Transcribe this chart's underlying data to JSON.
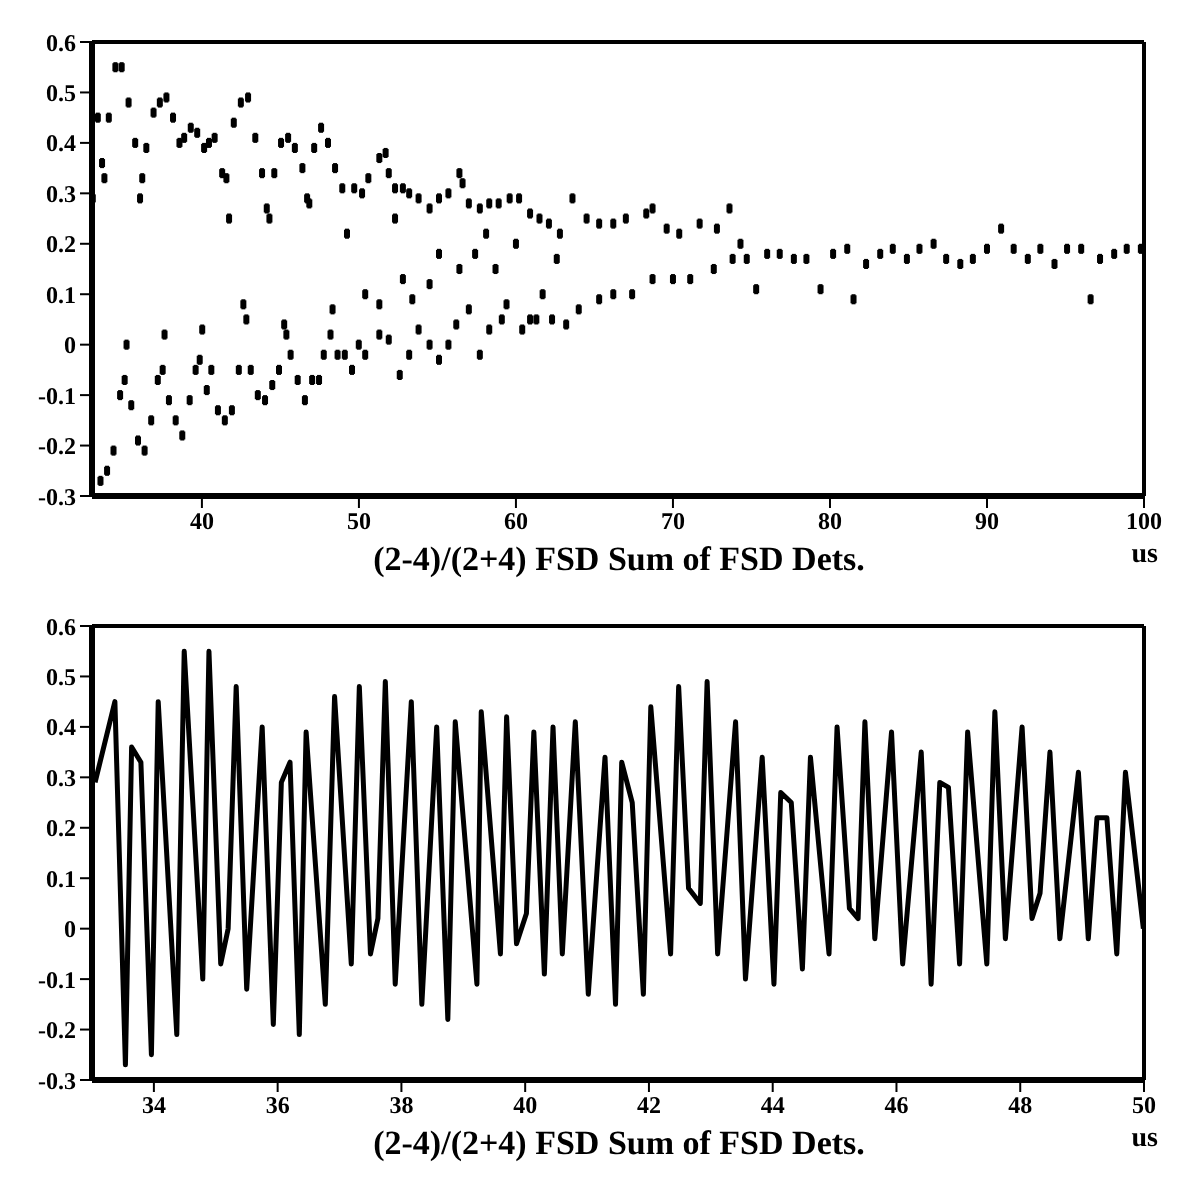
{
  "chart_data": [
    {
      "type": "scatter",
      "xlabel": "(2-4)/(2+4) FSD Sum of FSD Dets.",
      "annotations": [
        "us"
      ],
      "marker": "square",
      "xlim": [
        33,
        100
      ],
      "xticks": [
        40,
        50,
        60,
        70,
        80,
        90,
        100
      ],
      "ylim": [
        -0.3,
        0.6
      ],
      "yticks": [
        -0.3,
        -0.2,
        -0.1,
        0,
        0.1,
        0.2,
        0.3,
        0.4,
        0.5,
        0.6
      ],
      "series": [
        {
          "color": "#000000",
          "x": [
            33.05,
            33.37,
            33.54,
            33.64,
            33.79,
            33.96,
            34.07,
            34.37,
            34.49,
            34.79,
            34.89,
            35.08,
            35.2,
            35.33,
            35.5,
            35.75,
            35.93,
            36.06,
            36.2,
            36.35,
            36.46,
            36.77,
            36.92,
            37.19,
            37.32,
            37.5,
            37.62,
            37.74,
            37.9,
            38.16,
            38.33,
            38.57,
            38.75,
            38.87,
            39.22,
            39.29,
            39.6,
            39.7,
            39.86,
            40.02,
            40.14,
            40.31,
            40.45,
            40.6,
            40.81,
            41.02,
            41.29,
            41.46,
            41.56,
            41.73,
            41.91,
            42.03,
            42.35,
            42.48,
            42.64,
            42.83,
            42.94,
            43.11,
            43.4,
            43.56,
            43.83,
            44.02,
            44.13,
            44.3,
            44.48,
            44.61,
            44.91,
            45.04,
            45.24,
            45.38,
            45.49,
            45.65,
            45.92,
            46.1,
            46.4,
            46.56,
            46.7,
            46.84,
            47.02,
            47.15,
            47.46,
            47.59,
            47.76,
            48.03,
            48.19,
            48.32,
            48.48,
            48.64,
            48.94,
            49.1,
            49.24,
            49.56,
            49.7,
            49.99
          ],
          "values": [
            0.29,
            0.45,
            -0.27,
            0.36,
            0.33,
            -0.25,
            0.45,
            -0.21,
            0.55,
            -0.1,
            0.55,
            -0.07,
            0.0,
            0.48,
            -0.12,
            0.4,
            -0.19,
            0.29,
            0.33,
            -0.21,
            0.39,
            -0.15,
            0.46,
            -0.07,
            0.48,
            -0.05,
            0.02,
            0.49,
            -0.11,
            0.45,
            -0.15,
            0.4,
            -0.18,
            0.41,
            -0.11,
            0.43,
            -0.05,
            0.42,
            -0.03,
            0.03,
            0.39,
            -0.09,
            0.4,
            -0.05,
            0.41,
            -0.13,
            0.34,
            -0.15,
            0.33,
            0.25,
            -0.13,
            0.44,
            -0.05,
            0.48,
            0.08,
            0.05,
            0.49,
            -0.05,
            0.41,
            -0.1,
            0.34,
            -0.11,
            0.27,
            0.25,
            -0.08,
            0.34,
            -0.05,
            0.4,
            0.04,
            0.02,
            0.41,
            -0.02,
            0.39,
            -0.07,
            0.35,
            -0.11,
            0.29,
            0.28,
            -0.07,
            0.39,
            -0.07,
            0.43,
            -0.02,
            0.4,
            0.02,
            0.07,
            0.35,
            -0.02,
            0.31,
            -0.02,
            0.22,
            -0.05,
            0.31,
            0.0
          ],
          "errors": [
            0.01,
            0.01,
            0.01,
            0.01,
            0.01,
            0.01,
            0.01,
            0.01,
            0.01,
            0.01,
            0.01,
            0.01,
            0.01,
            0.01,
            0.01,
            0.01,
            0.01,
            0.01,
            0.01,
            0.01,
            0.01,
            0.01,
            0.01,
            0.01,
            0.01,
            0.01,
            0.01,
            0.01,
            0.01,
            0.01,
            0.01,
            0.01,
            0.01,
            0.01,
            0.01,
            0.01,
            0.01,
            0.01,
            0.01,
            0.01,
            0.01,
            0.01,
            0.01,
            0.01,
            0.01,
            0.01,
            0.01,
            0.01,
            0.01,
            0.01,
            0.01,
            0.01,
            0.01,
            0.01,
            0.01,
            0.01,
            0.01,
            0.01,
            0.01,
            0.01,
            0.01,
            0.01,
            0.01,
            0.01,
            0.01,
            0.01,
            0.01,
            0.01,
            0.01,
            0.01,
            0.01,
            0.01,
            0.01,
            0.01,
            0.01,
            0.01,
            0.01,
            0.01,
            0.01,
            0.01,
            0.01,
            0.01,
            0.01,
            0.01,
            0.01,
            0.01,
            0.01,
            0.01,
            0.01,
            0.01,
            0.01,
            0.01,
            0.01,
            0.01
          ]
        },
        {
          "color": "#000000",
          "x": [
            50.2,
            50.6,
            51.3,
            51.7,
            51.9,
            52.3,
            52.8,
            53.2,
            53.8,
            54.5,
            55.1,
            55.7,
            56.4,
            56.6,
            57.0,
            57.7,
            58.3,
            58.9,
            59.6,
            60.2,
            60.9,
            61.5,
            62.1,
            62.8,
            50.4,
            51.3,
            51.9,
            52.6,
            53.2,
            53.8,
            54.5,
            55.1,
            55.7,
            56.2,
            57.0,
            57.7,
            58.3,
            59.1,
            60.4,
            61.3,
            62.3,
            50.4,
            51.3,
            52.3,
            52.8,
            53.4,
            54.5,
            55.1,
            56.4,
            57.4,
            58.1,
            58.7,
            59.4,
            60.0,
            60.9,
            61.7,
            62.6,
            63.6,
            64.5,
            65.3,
            66.2,
            67.0,
            68.3,
            68.7,
            69.6,
            70.4,
            71.7,
            72.8,
            73.6,
            74.3,
            63.2,
            64.0,
            65.3,
            66.2,
            67.4,
            68.7,
            70.0,
            71.1,
            72.6,
            73.8,
            74.7,
            75.3,
            76.0,
            76.8,
            77.7,
            78.5,
            79.4,
            80.2,
            81.1,
            81.5,
            82.3,
            83.2,
            84.0,
            84.9,
            85.7,
            86.6,
            87.4,
            88.3,
            89.1,
            90.0,
            90.9,
            91.7,
            92.6,
            93.4,
            94.3,
            95.1,
            96.0,
            96.6,
            97.2,
            98.1,
            98.9,
            99.8
          ],
          "values": [
            0.3,
            0.33,
            0.37,
            0.38,
            0.34,
            0.31,
            0.31,
            0.3,
            0.29,
            0.27,
            0.29,
            0.3,
            0.34,
            0.32,
            0.28,
            0.27,
            0.28,
            0.28,
            0.29,
            0.29,
            0.26,
            0.25,
            0.24,
            0.22,
            -0.02,
            0.02,
            0.01,
            -0.06,
            -0.02,
            0.03,
            0.0,
            -0.03,
            0.0,
            0.04,
            0.07,
            -0.02,
            0.03,
            0.05,
            0.03,
            0.05,
            0.05,
            0.1,
            0.08,
            0.25,
            0.13,
            0.09,
            0.12,
            0.18,
            0.15,
            0.18,
            0.22,
            0.15,
            0.08,
            0.2,
            0.05,
            0.1,
            0.17,
            0.29,
            0.25,
            0.24,
            0.24,
            0.25,
            0.26,
            0.27,
            0.23,
            0.22,
            0.24,
            0.23,
            0.27,
            0.2,
            0.04,
            0.07,
            0.09,
            0.1,
            0.1,
            0.13,
            0.13,
            0.13,
            0.15,
            0.17,
            0.17,
            0.11,
            0.18,
            0.18,
            0.17,
            0.17,
            0.11,
            0.18,
            0.19,
            0.09,
            0.16,
            0.18,
            0.19,
            0.17,
            0.19,
            0.2,
            0.17,
            0.16,
            0.17,
            0.19,
            0.23,
            0.19,
            0.17,
            0.19,
            0.16,
            0.19,
            0.19,
            0.09,
            0.17,
            0.18,
            0.19,
            0.19
          ],
          "errors": [
            0.01,
            0.01,
            0.01,
            0.01,
            0.01,
            0.01,
            0.01,
            0.01,
            0.01,
            0.01,
            0.01,
            0.01,
            0.01,
            0.01,
            0.01,
            0.01,
            0.01,
            0.01,
            0.01,
            0.01,
            0.01,
            0.01,
            0.01,
            0.01,
            0.01,
            0.01,
            0.01,
            0.01,
            0.01,
            0.01,
            0.01,
            0.01,
            0.01,
            0.01,
            0.01,
            0.01,
            0.01,
            0.01,
            0.01,
            0.01,
            0.01,
            0.01,
            0.01,
            0.01,
            0.01,
            0.01,
            0.01,
            0.01,
            0.01,
            0.01,
            0.01,
            0.01,
            0.01,
            0.01,
            0.01,
            0.01,
            0.01,
            0.01,
            0.01,
            0.01,
            0.01,
            0.01,
            0.01,
            0.01,
            0.01,
            0.01,
            0.01,
            0.01,
            0.01,
            0.01,
            0.01,
            0.01,
            0.01,
            0.01,
            0.01,
            0.01,
            0.01,
            0.01,
            0.01,
            0.01,
            0.01,
            0.01,
            0.01,
            0.01,
            0.01,
            0.01,
            0.01,
            0.01,
            0.01,
            0.01,
            0.01,
            0.01,
            0.01,
            0.01,
            0.01,
            0.01,
            0.01,
            0.01,
            0.01,
            0.01,
            0.01,
            0.01,
            0.01,
            0.01,
            0.01,
            0.01,
            0.01,
            0.01,
            0.01,
            0.01,
            0.01,
            0.01
          ]
        }
      ]
    },
    {
      "type": "line",
      "xlabel": "(2-4)/(2+4) FSD Sum of FSD Dets.",
      "annotations": [
        "us"
      ],
      "marker": "none",
      "line_style": "solid",
      "xlim": [
        33,
        50
      ],
      "xticks": [
        34,
        36,
        38,
        40,
        42,
        44,
        46,
        48,
        50
      ],
      "ylim": [
        -0.3,
        0.6
      ],
      "yticks": [
        -0.3,
        -0.2,
        -0.1,
        0,
        0.1,
        0.2,
        0.3,
        0.4,
        0.5,
        0.6
      ],
      "series": [
        {
          "color": "#000000",
          "x": [
            33.05,
            33.37,
            33.54,
            33.64,
            33.79,
            33.96,
            34.07,
            34.37,
            34.49,
            34.79,
            34.89,
            35.08,
            35.2,
            35.33,
            35.5,
            35.75,
            35.93,
            36.06,
            36.2,
            36.35,
            36.46,
            36.77,
            36.92,
            37.19,
            37.32,
            37.5,
            37.62,
            37.74,
            37.9,
            38.16,
            38.33,
            38.57,
            38.75,
            38.87,
            39.22,
            39.29,
            39.6,
            39.7,
            39.86,
            40.02,
            40.14,
            40.31,
            40.45,
            40.6,
            40.81,
            41.02,
            41.29,
            41.46,
            41.56,
            41.73,
            41.91,
            42.03,
            42.35,
            42.48,
            42.64,
            42.83,
            42.94,
            43.11,
            43.4,
            43.56,
            43.83,
            44.02,
            44.13,
            44.3,
            44.48,
            44.61,
            44.91,
            45.04,
            45.24,
            45.38,
            45.49,
            45.65,
            45.92,
            46.1,
            46.4,
            46.56,
            46.7,
            46.84,
            47.02,
            47.15,
            47.46,
            47.59,
            47.76,
            48.03,
            48.19,
            48.32,
            48.48,
            48.64,
            48.94,
            49.1,
            49.24,
            49.4,
            49.56,
            49.7,
            49.99
          ],
          "values": [
            0.29,
            0.45,
            -0.27,
            0.36,
            0.33,
            -0.25,
            0.45,
            -0.21,
            0.55,
            -0.1,
            0.55,
            -0.07,
            0.0,
            0.48,
            -0.12,
            0.4,
            -0.19,
            0.29,
            0.33,
            -0.21,
            0.39,
            -0.15,
            0.46,
            -0.07,
            0.48,
            -0.05,
            0.02,
            0.49,
            -0.11,
            0.45,
            -0.15,
            0.4,
            -0.18,
            0.41,
            -0.11,
            0.43,
            -0.05,
            0.42,
            -0.03,
            0.03,
            0.39,
            -0.09,
            0.4,
            -0.05,
            0.41,
            -0.13,
            0.34,
            -0.15,
            0.33,
            0.25,
            -0.13,
            0.44,
            -0.05,
            0.48,
            0.08,
            0.05,
            0.49,
            -0.05,
            0.41,
            -0.1,
            0.34,
            -0.11,
            0.27,
            0.25,
            -0.08,
            0.34,
            -0.05,
            0.4,
            0.04,
            0.02,
            0.41,
            -0.02,
            0.39,
            -0.07,
            0.35,
            -0.11,
            0.29,
            0.28,
            -0.07,
            0.39,
            -0.07,
            0.43,
            -0.02,
            0.4,
            0.02,
            0.07,
            0.35,
            -0.02,
            0.31,
            -0.02,
            0.22,
            0.22,
            -0.05,
            0.31,
            0.0
          ]
        }
      ]
    }
  ]
}
